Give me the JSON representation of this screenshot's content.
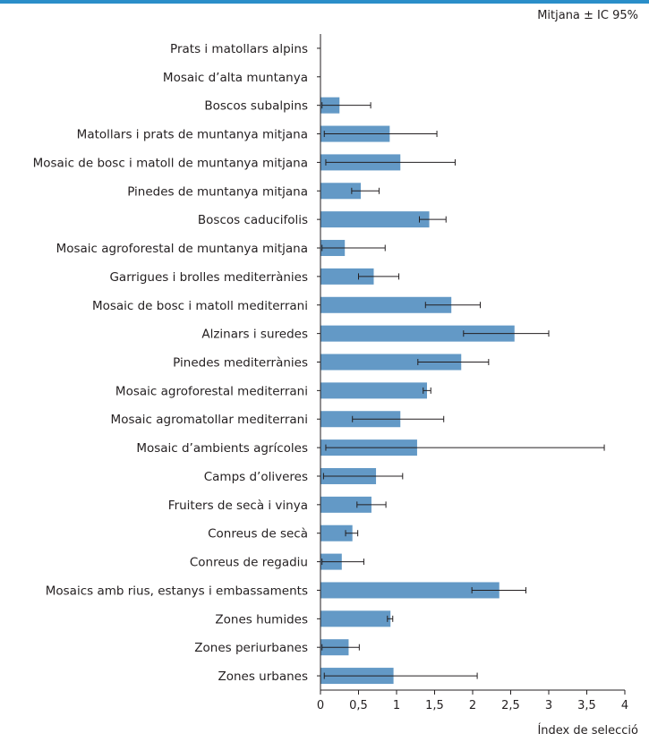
{
  "note": "Mitjana ± IC 95%",
  "chart_data": {
    "type": "bar",
    "orientation": "horizontal",
    "categories": [
      "Prats i matollars alpins",
      "Mosaic d’alta muntanya",
      "Boscos subalpins",
      "Matollars i prats de muntanya mitjana",
      "Mosaic de bosc i matoll de muntanya mitjana",
      "Pinedes de muntanya mitjana",
      "Boscos caducifolis",
      "Mosaic agroforestal de muntanya mitjana",
      "Garrigues i brolles mediterrànies",
      "Mosaic de bosc i matoll mediterrani",
      "Alzinars i suredes",
      "Pinedes mediterrànies",
      "Mosaic agroforestal mediterrani",
      "Mosaic agromatollar mediterrani",
      "Mosaic d’ambients agrícoles",
      "Camps d’oliveres",
      "Fruiters de secà i vinya",
      "Conreus de secà",
      "Conreus de regadiu",
      "Mosaics amb rius, estanys i embassaments",
      "Zones humides",
      "Zones periurbanes",
      "Zones urbanes"
    ],
    "values": [
      0,
      0,
      0.25,
      0.91,
      1.05,
      0.53,
      1.43,
      0.32,
      0.7,
      1.72,
      2.55,
      1.85,
      1.4,
      1.05,
      1.27,
      0.73,
      0.67,
      0.42,
      0.28,
      2.35,
      0.92,
      0.37,
      0.96
    ],
    "ci_low": [
      0,
      0,
      0.02,
      0.05,
      0.07,
      0.41,
      1.3,
      0.02,
      0.5,
      1.38,
      1.88,
      1.28,
      1.35,
      0.42,
      0.07,
      0.04,
      0.48,
      0.33,
      0.02,
      1.99,
      0.88,
      0.02,
      0.05
    ],
    "ci_high": [
      0,
      0,
      0.66,
      1.53,
      1.77,
      0.77,
      1.65,
      0.85,
      1.03,
      2.1,
      3.0,
      2.21,
      1.45,
      1.62,
      3.73,
      1.08,
      0.86,
      0.49,
      0.57,
      2.7,
      0.95,
      0.51,
      2.06
    ],
    "xlim": [
      0,
      4
    ],
    "xticks": [
      "0",
      "0,5",
      "1",
      "1,5",
      "2",
      "2,5",
      "3",
      "3,5",
      "4"
    ],
    "xlabel": "Índex de selecció",
    "colors": {
      "bar": "#6399c6",
      "rule": "#2a8ec9",
      "error": "#231f20"
    }
  }
}
